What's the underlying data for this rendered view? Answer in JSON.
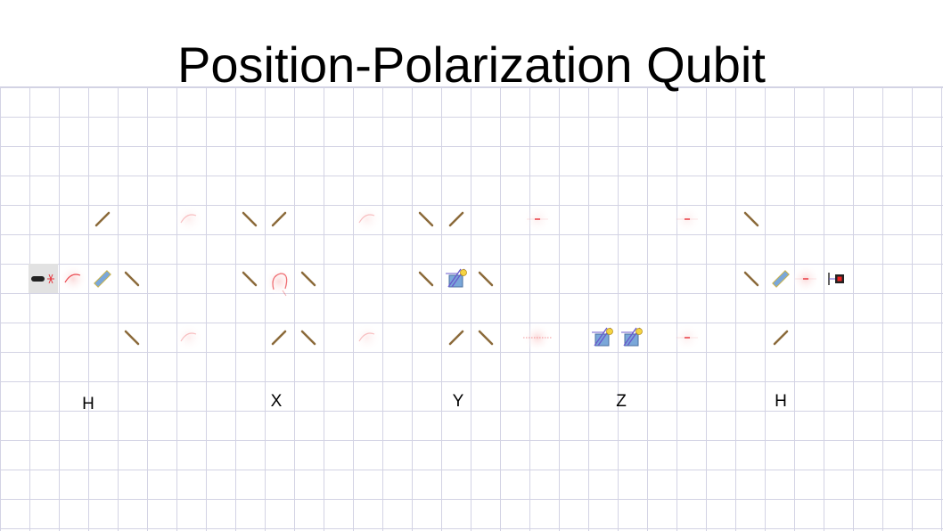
{
  "title": "Position-Polarization Qubit",
  "gate_labels": [
    "H",
    "X",
    "Y",
    "Z",
    "H"
  ],
  "colors": {
    "grid": "#d3d3e4",
    "mirror": "#8b6a3a",
    "beam": "#e8343c",
    "plate": "#7aa7d9",
    "plate_edge": "#c9b24a",
    "polarizer": "#6a5acd",
    "detector": "#b02020"
  },
  "components": {
    "source": "laser-source-icon",
    "mirror": "mirror-icon",
    "splitter": "beam-splitter-icon",
    "wave_plate": "wave-plate-icon",
    "phase_shifter": "phase-shifter-icon",
    "detector": "detector-icon"
  }
}
